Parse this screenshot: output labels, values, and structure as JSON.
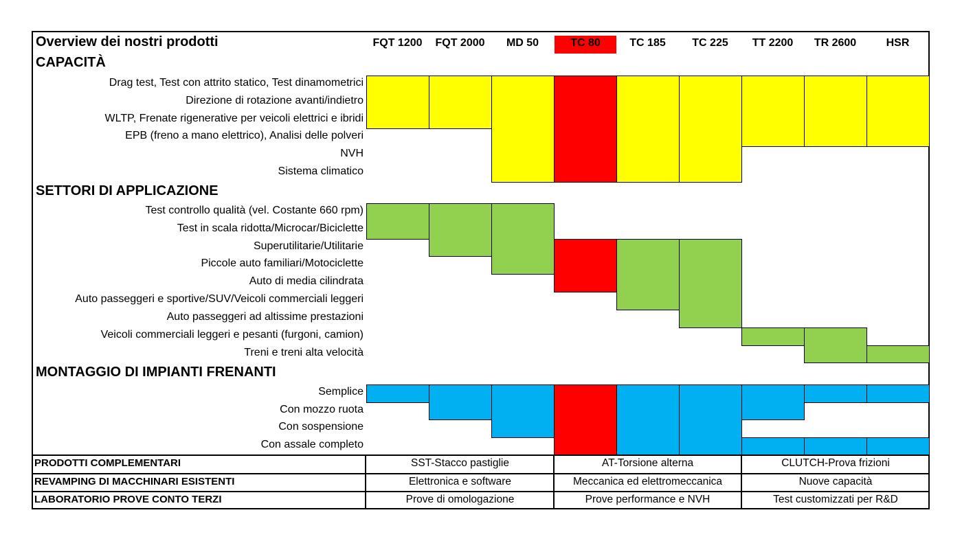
{
  "header": {
    "title": "Overview dei nostri prodotti",
    "products": [
      "FQT 1200",
      "FQT 2000",
      "MD 50",
      "TC 80",
      "TC 185",
      "TC 225",
      "TT 2200",
      "TR 2600",
      "HSR"
    ],
    "highlight_product": "TC 80"
  },
  "colors": {
    "capacita": "#ffff00",
    "settori": "#92d050",
    "montaggio": "#00b0f0",
    "highlight": "#ff0000",
    "border": "#000000"
  },
  "sections": [
    {
      "title": "CAPACITÀ",
      "color_key": "capacita",
      "rows": [
        "Drag test, Test con attrito statico, Test dinamometrici",
        "Direzione di rotazione avanti/indietro",
        "WLTP, Frenate rigenerative per veicoli elettrici e ibridi",
        "EPB (freno a mano elettrico), Analisi delle polveri",
        "NVH",
        "Sistema climatico"
      ],
      "bands": [
        {
          "product": "FQT 1200",
          "rows": [
            0,
            2
          ]
        },
        {
          "product": "FQT 2000",
          "rows": [
            0,
            2
          ]
        },
        {
          "product": "MD 50",
          "rows": [
            0,
            5
          ]
        },
        {
          "product": "TC 80",
          "rows": [
            0,
            5
          ]
        },
        {
          "product": "TC 185",
          "rows": [
            0,
            5
          ]
        },
        {
          "product": "TC 225",
          "rows": [
            0,
            5
          ]
        },
        {
          "product": "TT 2200",
          "rows": [
            0,
            3
          ]
        },
        {
          "product": "TR 2600",
          "rows": [
            0,
            3
          ]
        },
        {
          "product": "HSR",
          "rows": [
            0,
            3
          ]
        }
      ]
    },
    {
      "title": "SETTORI DI APPLICAZIONE",
      "color_key": "settori",
      "rows": [
        "Test controllo qualità (vel. Costante 660 rpm)",
        "Test in scala ridotta/Microcar/Biciclette",
        "Superutilitarie/Utilitarie",
        "Piccole auto familiari/Motociclette",
        "Auto di media cilindrata",
        "Auto passeggeri e sportive/SUV/Veicoli commerciali leggeri",
        "Auto passeggeri ad altissime prestazioni",
        "Veicoli commerciali leggeri e pesanti (furgoni, camion)",
        "Treni e treni alta velocità"
      ],
      "bands": [
        {
          "product": "FQT 1200",
          "rows": [
            0,
            1
          ]
        },
        {
          "product": "FQT 2000",
          "rows": [
            0,
            2
          ]
        },
        {
          "product": "MD 50",
          "rows": [
            0,
            3
          ]
        },
        {
          "product": "TC 80",
          "rows": [
            2,
            4
          ]
        },
        {
          "product": "TC 185",
          "rows": [
            2,
            5
          ]
        },
        {
          "product": "TC 225",
          "rows": [
            2,
            6
          ]
        },
        {
          "product": "TT 2200",
          "rows": [
            7,
            7
          ]
        },
        {
          "product": "TR 2600",
          "rows": [
            7,
            8
          ]
        },
        {
          "product": "HSR",
          "rows": [
            8,
            8
          ]
        }
      ]
    },
    {
      "title": "MONTAGGIO DI IMPIANTI FRENANTI",
      "color_key": "montaggio",
      "rows": [
        "Semplice",
        "Con mozzo ruota",
        "Con sospensione",
        "Con assale completo"
      ],
      "bands": [
        {
          "product": "FQT 1200",
          "rows": [
            0,
            0
          ]
        },
        {
          "product": "FQT 2000",
          "rows": [
            0,
            1
          ]
        },
        {
          "product": "MD 50",
          "rows": [
            0,
            2
          ]
        },
        {
          "product": "TC 80",
          "rows": [
            0,
            3
          ]
        },
        {
          "product": "TC 185",
          "rows": [
            0,
            3
          ]
        },
        {
          "product": "TC 225",
          "rows": [
            0,
            3
          ]
        },
        {
          "product": "TT 2200",
          "rows": [
            0,
            1
          ]
        },
        {
          "product": "TT 2200",
          "rows": [
            3,
            3
          ]
        },
        {
          "product": "TR 2600",
          "rows": [
            0,
            0
          ]
        },
        {
          "product": "TR 2600",
          "rows": [
            3,
            3
          ]
        },
        {
          "product": "HSR",
          "rows": [
            0,
            0
          ]
        },
        {
          "product": "HSR",
          "rows": [
            3,
            3
          ]
        }
      ]
    }
  ],
  "footer_rows": [
    {
      "label": "PRODOTTI COMPLEMENTARI",
      "values": [
        "SST-Stacco pastiglie",
        "AT-Torsione alterna",
        "CLUTCH-Prova frizioni"
      ]
    },
    {
      "label": "REVAMPING DI MACCHINARI ESISTENTI",
      "values": [
        "Elettronica e software",
        "Meccanica ed elettromeccanica",
        "Nuove capacità"
      ]
    },
    {
      "label": "LABORATORIO PROVE CONTO TERZI",
      "values": [
        "Prove di omologazione",
        "Prove performance e NVH",
        "Test customizzati per R&D"
      ]
    }
  ]
}
